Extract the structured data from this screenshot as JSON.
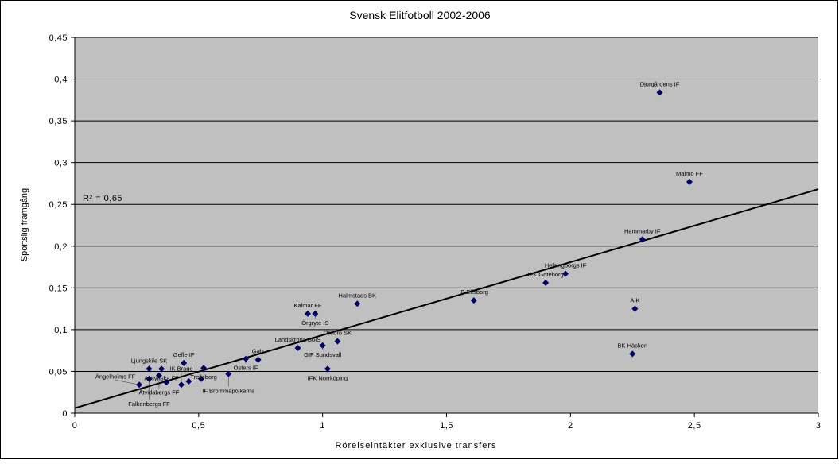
{
  "chart_data": {
    "type": "scatter",
    "title": "Svensk Elitfotboll 2002-2006",
    "xlabel": "Rörelseintäkter exklusive transfers",
    "ylabel": "Sportslig framgång",
    "xlim": [
      0,
      3
    ],
    "ylim": [
      0,
      0.45
    ],
    "xticks": [
      0,
      0.5,
      1,
      1.5,
      2,
      2.5,
      3
    ],
    "xtick_labels": [
      "0",
      "0,5",
      "1",
      "1,5",
      "2",
      "2,5",
      "3"
    ],
    "yticks": [
      0,
      0.05,
      0.1,
      0.15,
      0.2,
      0.25,
      0.3,
      0.35,
      0.4,
      0.45
    ],
    "ytick_labels": [
      "0",
      "0,05",
      "0,1",
      "0,15",
      "0,2",
      "0,25",
      "0,3",
      "0,35",
      "0,4",
      "0,45"
    ],
    "grid": "horizontal",
    "marker_color": "#000066",
    "background": "#c0c0c0",
    "trendline": {
      "type": "linear",
      "intercept": 0.006,
      "slope": 0.0874,
      "r2_label": "R² = 0,65"
    },
    "points": [
      {
        "name": "Djurgårdens IF",
        "x": 2.36,
        "y": 0.384
      },
      {
        "name": "Malmö FF",
        "x": 2.48,
        "y": 0.277
      },
      {
        "name": "Hammarby IF",
        "x": 2.29,
        "y": 0.208
      },
      {
        "name": "Helsingborgs IF",
        "x": 1.98,
        "y": 0.167
      },
      {
        "name": "IFK Göteborg",
        "x": 1.9,
        "y": 0.156
      },
      {
        "name": "IF Elfsborg",
        "x": 1.61,
        "y": 0.135
      },
      {
        "name": "AIK",
        "x": 2.26,
        "y": 0.125
      },
      {
        "name": "BK Häcken",
        "x": 2.25,
        "y": 0.071
      },
      {
        "name": "Halmstads BK",
        "x": 1.14,
        "y": 0.131
      },
      {
        "name": "Kalmar FF",
        "x": 0.94,
        "y": 0.119
      },
      {
        "name": "Örgryte IS",
        "x": 0.97,
        "y": 0.119
      },
      {
        "name": "Örebro SK",
        "x": 1.06,
        "y": 0.086
      },
      {
        "name": "GIF Sundsvall",
        "x": 1.0,
        "y": 0.081
      },
      {
        "name": "Landskrona BoIS",
        "x": 0.9,
        "y": 0.078
      },
      {
        "name": "IFK Norrköping",
        "x": 1.02,
        "y": 0.053
      },
      {
        "name": "Gais",
        "x": 0.74,
        "y": 0.064
      },
      {
        "name": "Östers IF",
        "x": 0.69,
        "y": 0.065
      },
      {
        "name": "Gefle IF",
        "x": 0.44,
        "y": 0.06
      },
      {
        "name": "Trelleborg",
        "x": 0.52,
        "y": 0.054
      },
      {
        "name": "IF Brommapojkarna",
        "x": 0.62,
        "y": 0.047
      },
      {
        "name": "Ljungskile SK",
        "x": 0.3,
        "y": 0.053
      },
      {
        "name": "Assyriska FF",
        "x": 0.35,
        "y": 0.053
      },
      {
        "name": "Åtvidabergs FF",
        "x": 0.34,
        "y": 0.045
      },
      {
        "name": "Falkenbergs FF",
        "x": 0.3,
        "y": 0.041
      },
      {
        "name": "Ängelholms FF",
        "x": 0.26,
        "y": 0.034
      },
      {
        "name": "IK Brage",
        "x": 0.43,
        "y": 0.034
      },
      {
        "name": "",
        "x": 0.37,
        "y": 0.037
      },
      {
        "name": "",
        "x": 0.46,
        "y": 0.038
      },
      {
        "name": "",
        "x": 0.51,
        "y": 0.041
      }
    ]
  }
}
